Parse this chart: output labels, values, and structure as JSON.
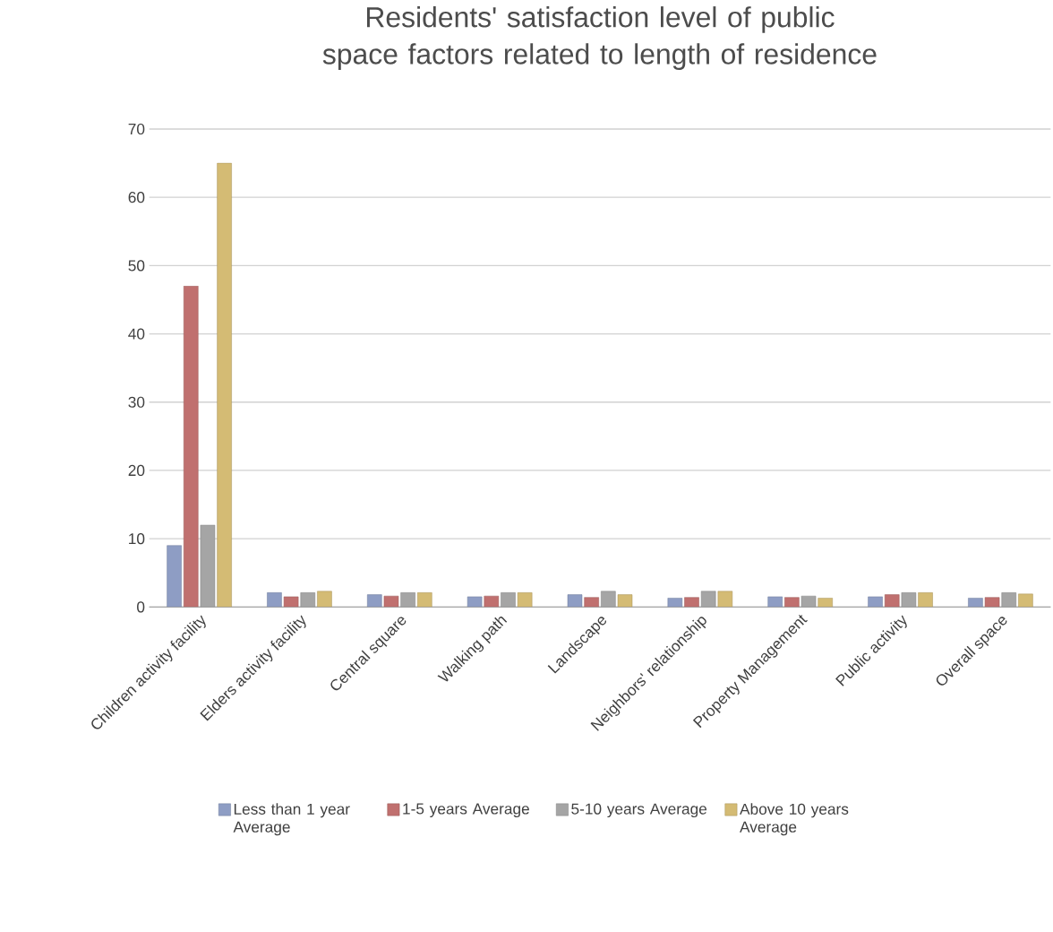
{
  "chart_data": {
    "type": "bar",
    "title": "Residents' satisfaction level of public space factors related to length of residence",
    "categories": [
      "Children activity facility",
      "Elders activity facility",
      "Central square",
      "Walking path",
      "Landscape",
      "Neighbors' relationship",
      "Property Management",
      "Public activity",
      "Overall space"
    ],
    "series": [
      {
        "name": "Less than 1 year Average",
        "color": "#8e9dc4",
        "values": [
          9,
          2.1,
          1.8,
          1.5,
          1.8,
          1.3,
          1.5,
          1.5,
          1.3
        ]
      },
      {
        "name": "1-5 years Average",
        "color": "#c0706f",
        "values": [
          47,
          1.5,
          1.6,
          1.6,
          1.4,
          1.4,
          1.4,
          1.8,
          1.4
        ]
      },
      {
        "name": "5-10 years Average",
        "color": "#a5a5a5",
        "values": [
          12,
          2.1,
          2.1,
          2.1,
          2.3,
          2.3,
          1.6,
          2.1,
          2.1
        ]
      },
      {
        "name": "Above 10 years Average",
        "color": "#d4bb74",
        "values": [
          65,
          2.3,
          2.1,
          2.1,
          1.8,
          2.3,
          1.3,
          2.1,
          1.9
        ]
      }
    ],
    "ylim": [
      0,
      70
    ],
    "yticks": [
      0,
      10,
      20,
      30,
      40,
      50,
      60,
      70
    ],
    "grid": "y",
    "legend": "bottom"
  }
}
